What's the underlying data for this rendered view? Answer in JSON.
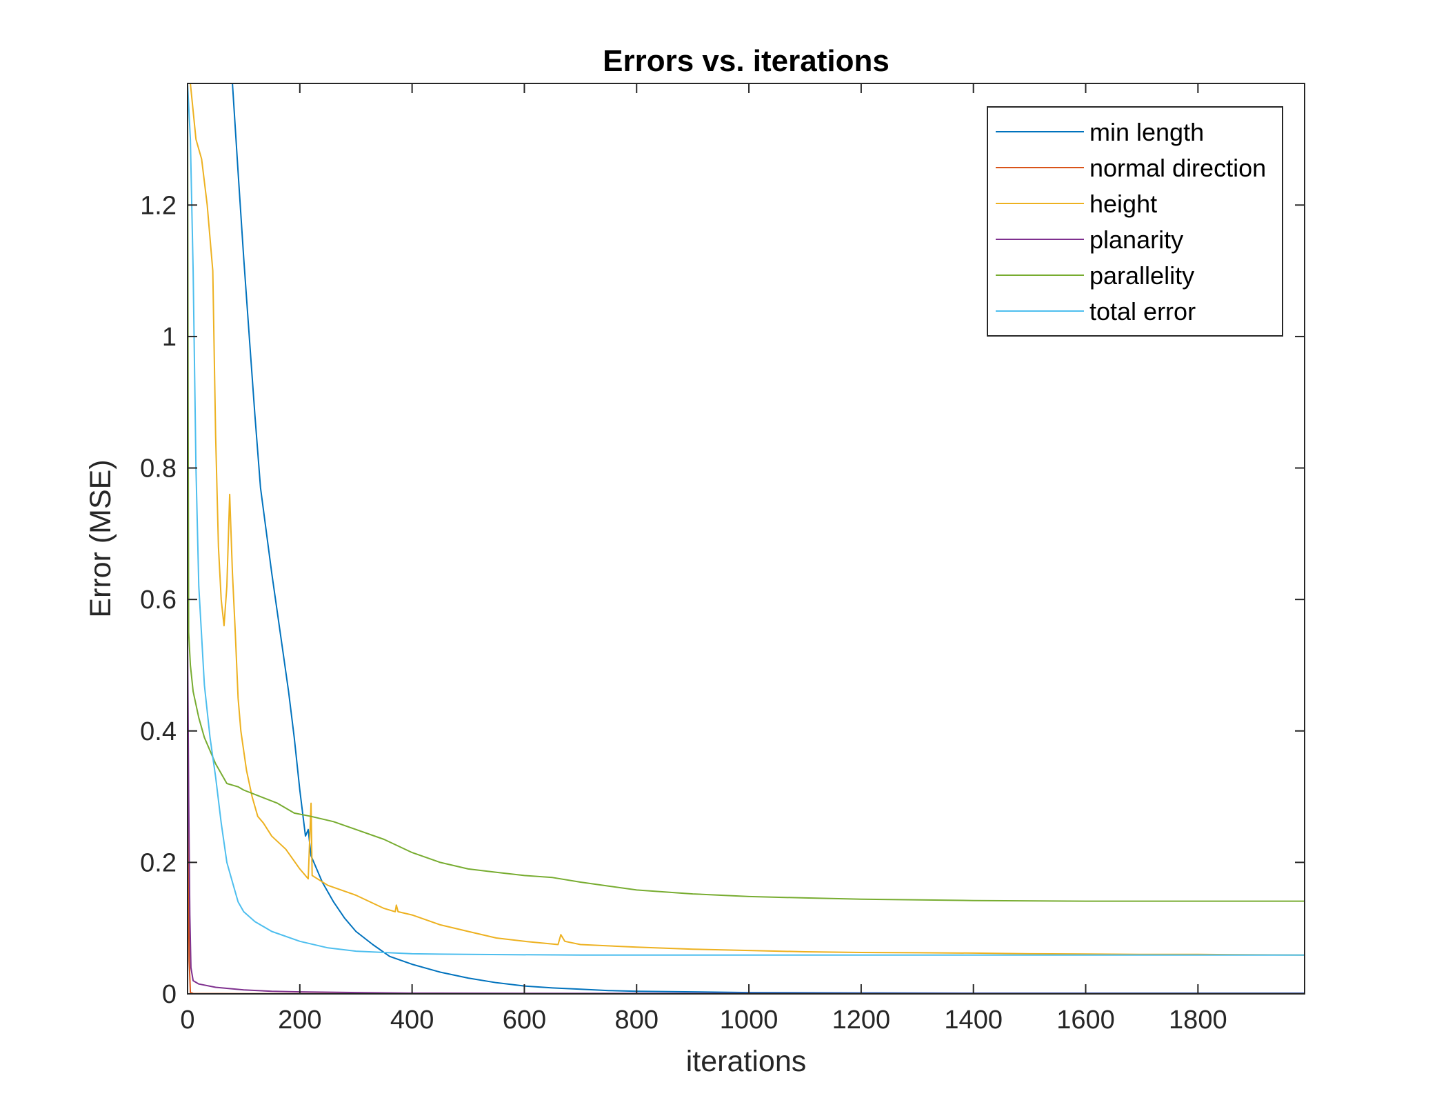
{
  "chart_data": {
    "type": "line",
    "title": "Errors vs. iterations",
    "xlabel": "iterations",
    "ylabel": "Error (MSE)",
    "xlim": [
      0,
      1990
    ],
    "ylim": [
      0,
      1.385
    ],
    "xticks": [
      0,
      200,
      400,
      600,
      800,
      1000,
      1200,
      1400,
      1600,
      1800
    ],
    "yticks": [
      0,
      0.2,
      0.4,
      0.6,
      0.8,
      1,
      1.2
    ],
    "ytick_labels": [
      "0",
      "0.2",
      "0.4",
      "0.6",
      "0.8",
      "1",
      "1.2"
    ],
    "grid": false,
    "legend": {
      "placement": "top-right"
    },
    "series": [
      {
        "name": "min length",
        "color": "#0072BD",
        "points": [
          [
            80,
            1.385
          ],
          [
            90,
            1.25
          ],
          [
            100,
            1.12
          ],
          [
            110,
            1.0
          ],
          [
            120,
            0.88
          ],
          [
            130,
            0.77
          ],
          [
            150,
            0.64
          ],
          [
            170,
            0.52
          ],
          [
            180,
            0.46
          ],
          [
            190,
            0.39
          ],
          [
            200,
            0.31
          ],
          [
            210,
            0.24
          ],
          [
            215,
            0.25
          ],
          [
            220,
            0.21
          ],
          [
            240,
            0.17
          ],
          [
            260,
            0.14
          ],
          [
            280,
            0.115
          ],
          [
            300,
            0.095
          ],
          [
            330,
            0.075
          ],
          [
            360,
            0.057
          ],
          [
            400,
            0.045
          ],
          [
            450,
            0.033
          ],
          [
            500,
            0.024
          ],
          [
            550,
            0.017
          ],
          [
            600,
            0.012
          ],
          [
            650,
            0.009
          ],
          [
            700,
            0.007
          ],
          [
            750,
            0.005
          ],
          [
            800,
            0.004
          ],
          [
            900,
            0.003
          ],
          [
            1000,
            0.002
          ],
          [
            1200,
            0.0015
          ],
          [
            1400,
            0.001
          ],
          [
            1600,
            0.001
          ],
          [
            1800,
            0.001
          ],
          [
            1990,
            0.001
          ]
        ]
      },
      {
        "name": "normal direction",
        "color": "#D95319",
        "points": [
          [
            0,
            0
          ],
          [
            1,
            0.32
          ],
          [
            2,
            0.2
          ],
          [
            3,
            0.05
          ],
          [
            5,
            0.002
          ],
          [
            10,
            0.0005
          ],
          [
            100,
            0.0003
          ],
          [
            1990,
            0.0002
          ]
        ]
      },
      {
        "name": "height",
        "color": "#EDB120",
        "points": [
          [
            5,
            1.385
          ],
          [
            15,
            1.3
          ],
          [
            25,
            1.27
          ],
          [
            35,
            1.2
          ],
          [
            45,
            1.1
          ],
          [
            50,
            0.85
          ],
          [
            55,
            0.68
          ],
          [
            60,
            0.6
          ],
          [
            65,
            0.56
          ],
          [
            70,
            0.62
          ],
          [
            75,
            0.76
          ],
          [
            80,
            0.64
          ],
          [
            85,
            0.55
          ],
          [
            90,
            0.45
          ],
          [
            95,
            0.4
          ],
          [
            105,
            0.34
          ],
          [
            115,
            0.3
          ],
          [
            125,
            0.27
          ],
          [
            135,
            0.26
          ],
          [
            150,
            0.24
          ],
          [
            175,
            0.22
          ],
          [
            200,
            0.19
          ],
          [
            215,
            0.175
          ],
          [
            220,
            0.29
          ],
          [
            222,
            0.18
          ],
          [
            250,
            0.165
          ],
          [
            300,
            0.15
          ],
          [
            350,
            0.13
          ],
          [
            370,
            0.125
          ],
          [
            372,
            0.135
          ],
          [
            375,
            0.125
          ],
          [
            400,
            0.12
          ],
          [
            450,
            0.105
          ],
          [
            500,
            0.095
          ],
          [
            550,
            0.085
          ],
          [
            600,
            0.08
          ],
          [
            660,
            0.075
          ],
          [
            665,
            0.09
          ],
          [
            672,
            0.08
          ],
          [
            700,
            0.075
          ],
          [
            800,
            0.071
          ],
          [
            900,
            0.068
          ],
          [
            1000,
            0.066
          ],
          [
            1100,
            0.064
          ],
          [
            1200,
            0.063
          ],
          [
            1300,
            0.0625
          ],
          [
            1400,
            0.062
          ],
          [
            1500,
            0.061
          ],
          [
            1600,
            0.0605
          ],
          [
            1700,
            0.06
          ],
          [
            1800,
            0.06
          ],
          [
            1990,
            0.059
          ]
        ]
      },
      {
        "name": "planarity",
        "color": "#7E2F8E",
        "points": [
          [
            0,
            0.55
          ],
          [
            2,
            0.3
          ],
          [
            4,
            0.12
          ],
          [
            6,
            0.04
          ],
          [
            10,
            0.02
          ],
          [
            20,
            0.015
          ],
          [
            50,
            0.01
          ],
          [
            100,
            0.006
          ],
          [
            150,
            0.004
          ],
          [
            200,
            0.003
          ],
          [
            300,
            0.002
          ],
          [
            400,
            0.001
          ],
          [
            600,
            0.0008
          ],
          [
            1000,
            0.0005
          ],
          [
            1990,
            0.0004
          ]
        ]
      },
      {
        "name": "parallelity",
        "color": "#77AC30",
        "points": [
          [
            0,
            1.385
          ],
          [
            1,
            0.9
          ],
          [
            2,
            0.55
          ],
          [
            5,
            0.5
          ],
          [
            10,
            0.46
          ],
          [
            20,
            0.42
          ],
          [
            30,
            0.39
          ],
          [
            50,
            0.35
          ],
          [
            70,
            0.32
          ],
          [
            90,
            0.315
          ],
          [
            100,
            0.31
          ],
          [
            130,
            0.3
          ],
          [
            160,
            0.29
          ],
          [
            190,
            0.275
          ],
          [
            220,
            0.27
          ],
          [
            260,
            0.262
          ],
          [
            300,
            0.25
          ],
          [
            350,
            0.235
          ],
          [
            400,
            0.215
          ],
          [
            450,
            0.2
          ],
          [
            500,
            0.19
          ],
          [
            550,
            0.185
          ],
          [
            600,
            0.18
          ],
          [
            650,
            0.177
          ],
          [
            700,
            0.17
          ],
          [
            750,
            0.164
          ],
          [
            800,
            0.158
          ],
          [
            900,
            0.152
          ],
          [
            1000,
            0.148
          ],
          [
            1100,
            0.146
          ],
          [
            1200,
            0.144
          ],
          [
            1400,
            0.142
          ],
          [
            1600,
            0.141
          ],
          [
            1800,
            0.141
          ],
          [
            1990,
            0.141
          ]
        ]
      },
      {
        "name": "total error",
        "color": "#4DBEEE",
        "points": [
          [
            0,
            1.385
          ],
          [
            5,
            1.3
          ],
          [
            10,
            1.1
          ],
          [
            15,
            0.8
          ],
          [
            20,
            0.62
          ],
          [
            30,
            0.47
          ],
          [
            40,
            0.39
          ],
          [
            50,
            0.33
          ],
          [
            60,
            0.26
          ],
          [
            70,
            0.2
          ],
          [
            80,
            0.17
          ],
          [
            90,
            0.14
          ],
          [
            100,
            0.125
          ],
          [
            120,
            0.11
          ],
          [
            150,
            0.095
          ],
          [
            200,
            0.08
          ],
          [
            250,
            0.07
          ],
          [
            300,
            0.065
          ],
          [
            400,
            0.061
          ],
          [
            500,
            0.06
          ],
          [
            700,
            0.059
          ],
          [
            1000,
            0.059
          ],
          [
            1500,
            0.059
          ],
          [
            1990,
            0.059
          ]
        ]
      }
    ]
  }
}
